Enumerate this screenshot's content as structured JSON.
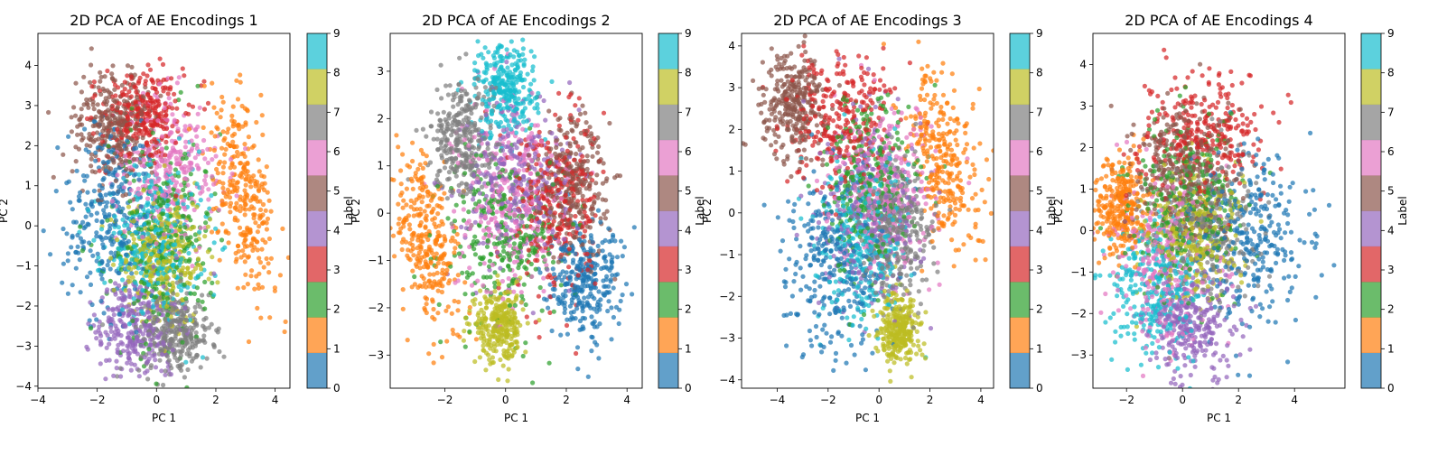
{
  "figure": {
    "colormap": [
      "#1f77b4",
      "#ff7f0e",
      "#2ca02c",
      "#d62728",
      "#9467bd",
      "#8c564b",
      "#e377c2",
      "#7f7f7f",
      "#bcbd22",
      "#17becf"
    ],
    "colormap_name": "tab10",
    "colorbar_ticks": [
      "0",
      "1",
      "2",
      "3",
      "4",
      "5",
      "6",
      "7",
      "8",
      "9"
    ]
  },
  "chart_data": [
    {
      "type": "scatter",
      "title": "2D PCA of AE Encodings 1",
      "xlabel": "PC 1",
      "ylabel": "PC 2",
      "colorbar_label": "Label",
      "xlim": [
        -4,
        4.5
      ],
      "ylim": [
        -4.05,
        4.8
      ],
      "xticks": [
        -4,
        -2,
        0,
        2,
        4
      ],
      "yticks": [
        -4,
        -3,
        -2,
        -1,
        0,
        1,
        2,
        3,
        4
      ],
      "grid": false,
      "clusters": [
        {
          "label": 0,
          "cx": -1.6,
          "cy": 0.2,
          "sx": 0.8,
          "sy": 1.1,
          "rot": 0
        },
        {
          "label": 1,
          "cx": 3.0,
          "cy": 0.6,
          "sx": 0.5,
          "sy": 1.3,
          "rot": 0.2
        },
        {
          "label": 2,
          "cx": 0.2,
          "cy": -0.3,
          "sx": 0.9,
          "sy": 1.3,
          "rot": 0
        },
        {
          "label": 3,
          "cx": -0.5,
          "cy": 2.8,
          "sx": 0.7,
          "sy": 0.6,
          "rot": 0
        },
        {
          "label": 4,
          "cx": -0.6,
          "cy": -2.5,
          "sx": 0.7,
          "sy": 0.6,
          "rot": 0
        },
        {
          "label": 5,
          "cx": -1.4,
          "cy": 2.5,
          "sx": 0.7,
          "sy": 0.7,
          "rot": 0
        },
        {
          "label": 6,
          "cx": 0.5,
          "cy": 1.4,
          "sx": 0.9,
          "sy": 0.9,
          "rot": 0
        },
        {
          "label": 7,
          "cx": 0.6,
          "cy": -2.7,
          "sx": 0.6,
          "sy": 0.5,
          "rot": 0
        },
        {
          "label": 8,
          "cx": 0.2,
          "cy": -0.8,
          "sx": 0.8,
          "sy": 0.8,
          "rot": 0
        },
        {
          "label": 9,
          "cx": -0.1,
          "cy": -0.4,
          "sx": 0.8,
          "sy": 1.0,
          "rot": 0
        }
      ]
    },
    {
      "type": "scatter",
      "title": "2D PCA of AE Encodings 2",
      "xlabel": "PC 1",
      "ylabel": "PC 2",
      "colorbar_label": "Label",
      "xlim": [
        -3.8,
        4.5
      ],
      "ylim": [
        -3.7,
        3.8
      ],
      "xticks": [
        -2,
        0,
        2,
        4
      ],
      "yticks": [
        -3,
        -2,
        -1,
        0,
        1,
        2,
        3
      ],
      "grid": false,
      "clusters": [
        {
          "label": 0,
          "cx": 2.6,
          "cy": -1.4,
          "sx": 0.6,
          "sy": 0.6,
          "rot": 0
        },
        {
          "label": 1,
          "cx": -2.6,
          "cy": -0.6,
          "sx": 0.5,
          "sy": 0.9,
          "rot": 0.3
        },
        {
          "label": 2,
          "cx": 0.0,
          "cy": -0.5,
          "sx": 0.9,
          "sy": 0.9,
          "rot": 0
        },
        {
          "label": 3,
          "cx": 1.6,
          "cy": 0.2,
          "sx": 0.7,
          "sy": 0.9,
          "rot": 0
        },
        {
          "label": 4,
          "cx": 0.3,
          "cy": 0.8,
          "sx": 0.9,
          "sy": 0.9,
          "rot": 0
        },
        {
          "label": 5,
          "cx": 2.2,
          "cy": 0.6,
          "sx": 0.6,
          "sy": 0.8,
          "rot": 0
        },
        {
          "label": 6,
          "cx": 0.2,
          "cy": 0.3,
          "sx": 0.9,
          "sy": 1.0,
          "rot": 0
        },
        {
          "label": 7,
          "cx": -1.4,
          "cy": 1.6,
          "sx": 0.5,
          "sy": 0.6,
          "rot": 0
        },
        {
          "label": 8,
          "cx": -0.2,
          "cy": -2.4,
          "sx": 0.4,
          "sy": 0.4,
          "rot": 0
        },
        {
          "label": 9,
          "cx": 0.0,
          "cy": 2.6,
          "sx": 0.5,
          "sy": 0.5,
          "rot": 0
        }
      ]
    },
    {
      "type": "scatter",
      "title": "2D PCA of AE Encodings 3",
      "xlabel": "PC 1",
      "ylabel": "PC 2",
      "colorbar_label": "Label",
      "xlim": [
        -5.4,
        4.5
      ],
      "ylim": [
        -4.2,
        4.3
      ],
      "xticks": [
        -4,
        -2,
        0,
        2,
        4
      ],
      "yticks": [
        -4,
        -3,
        -2,
        -1,
        0,
        1,
        2,
        3,
        4
      ],
      "grid": false,
      "clusters": [
        {
          "label": 0,
          "cx": -1.8,
          "cy": -1.3,
          "sx": 1.0,
          "sy": 1.1,
          "rot": 0
        },
        {
          "label": 1,
          "cx": 2.6,
          "cy": 1.2,
          "sx": 0.6,
          "sy": 1.1,
          "rot": 0.35
        },
        {
          "label": 2,
          "cx": -0.3,
          "cy": 0.6,
          "sx": 0.9,
          "sy": 1.0,
          "rot": 0
        },
        {
          "label": 3,
          "cx": -1.4,
          "cy": 2.2,
          "sx": 1.0,
          "sy": 0.8,
          "rot": 0
        },
        {
          "label": 4,
          "cx": -0.4,
          "cy": 0.0,
          "sx": 1.0,
          "sy": 1.1,
          "rot": 0
        },
        {
          "label": 5,
          "cx": -3.4,
          "cy": 2.6,
          "sx": 0.6,
          "sy": 0.6,
          "rot": 0
        },
        {
          "label": 6,
          "cx": 0.3,
          "cy": 0.6,
          "sx": 1.0,
          "sy": 1.0,
          "rot": 0
        },
        {
          "label": 7,
          "cx": 0.8,
          "cy": -0.4,
          "sx": 0.7,
          "sy": 0.8,
          "rot": 0
        },
        {
          "label": 8,
          "cx": 0.8,
          "cy": -2.8,
          "sx": 0.4,
          "sy": 0.4,
          "rot": 0
        },
        {
          "label": 9,
          "cx": -0.6,
          "cy": -0.6,
          "sx": 0.9,
          "sy": 1.0,
          "rot": 0
        }
      ]
    },
    {
      "type": "scatter",
      "title": "2D PCA of AE Encodings 4",
      "xlabel": "PC 1",
      "ylabel": "PC 2",
      "colorbar_label": "Label",
      "xlim": [
        -3.2,
        5.8
      ],
      "ylim": [
        -3.8,
        4.75
      ],
      "xticks": [
        -2,
        0,
        2,
        4
      ],
      "yticks": [
        -3,
        -2,
        -1,
        0,
        1,
        2,
        3,
        4
      ],
      "grid": false,
      "clusters": [
        {
          "label": 0,
          "cx": 2.4,
          "cy": -0.1,
          "sx": 1.0,
          "sy": 1.1,
          "rot": 0
        },
        {
          "label": 1,
          "cx": -2.2,
          "cy": 0.6,
          "sx": 0.5,
          "sy": 0.6,
          "rot": 0
        },
        {
          "label": 2,
          "cx": 0.2,
          "cy": 0.7,
          "sx": 1.0,
          "sy": 1.0,
          "rot": 0
        },
        {
          "label": 3,
          "cx": 0.8,
          "cy": 2.3,
          "sx": 1.1,
          "sy": 0.7,
          "rot": 0
        },
        {
          "label": 4,
          "cx": 0.4,
          "cy": -2.3,
          "sx": 0.8,
          "sy": 0.6,
          "rot": 0
        },
        {
          "label": 5,
          "cx": 0.0,
          "cy": 1.4,
          "sx": 0.9,
          "sy": 0.8,
          "rot": 0
        },
        {
          "label": 6,
          "cx": -0.6,
          "cy": -0.8,
          "sx": 0.9,
          "sy": 1.0,
          "rot": 0
        },
        {
          "label": 7,
          "cx": 0.8,
          "cy": 0.2,
          "sx": 0.9,
          "sy": 0.9,
          "rot": 0
        },
        {
          "label": 8,
          "cx": 0.4,
          "cy": -0.1,
          "sx": 0.8,
          "sy": 0.8,
          "rot": 0
        },
        {
          "label": 9,
          "cx": -1.0,
          "cy": -1.4,
          "sx": 0.8,
          "sy": 0.8,
          "rot": 0
        }
      ]
    }
  ]
}
